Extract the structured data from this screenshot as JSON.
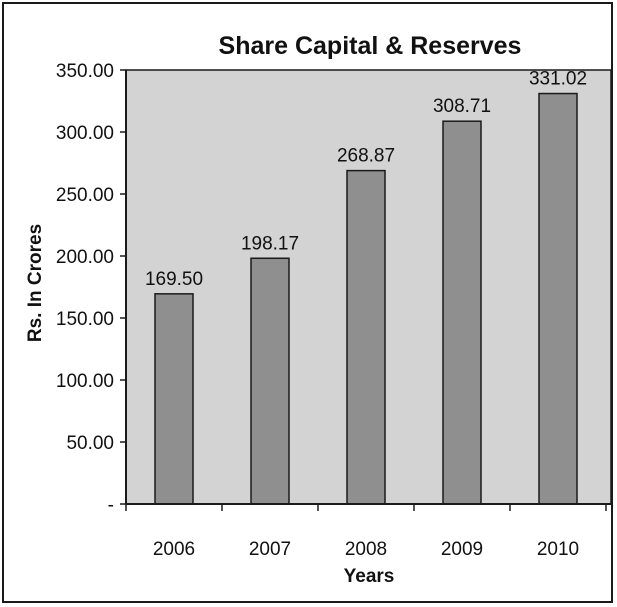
{
  "chart_data": {
    "type": "bar",
    "title": "Share Capital & Reserves",
    "xlabel": "Years",
    "ylabel": "Rs. In Crores",
    "categories": [
      "2006",
      "2007",
      "2008",
      "2009",
      "2010"
    ],
    "values": [
      169.5,
      198.17,
      268.87,
      308.71,
      331.02
    ],
    "value_labels": [
      "169.50",
      "198.17",
      "268.87",
      "308.71",
      "331.02"
    ],
    "ylim": [
      0,
      350
    ],
    "yticks": [
      0,
      50,
      100,
      150,
      200,
      250,
      300,
      350
    ],
    "ytick_labels": [
      "-",
      "50.00",
      "100.00",
      "150.00",
      "200.00",
      "250.00",
      "300.00",
      "350.00"
    ],
    "grid": false,
    "legend": "none",
    "colors": {
      "plot_background": "#d3d3d3",
      "bar_fill": "#8f8f8f",
      "bar_stroke": "#1a1a1a",
      "axis": "#1a1a1a",
      "text": "#111111"
    }
  }
}
